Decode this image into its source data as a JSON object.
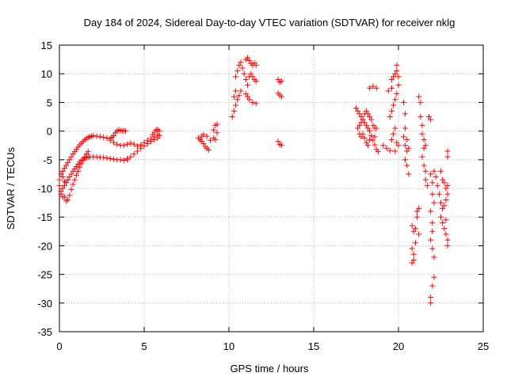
{
  "chart_data": {
    "type": "scatter",
    "title": "Day 184 of 2024, Sidereal Day-to-day VTEC variation (SDTVAR) for receiver nklg",
    "xlabel": "GPS time / hours",
    "ylabel": "SDTVAR / TECUs",
    "xlim": [
      0,
      25
    ],
    "ylim": [
      -35,
      15
    ],
    "xticks": [
      0,
      5,
      10,
      15,
      20,
      25
    ],
    "yticks": [
      -35,
      -30,
      -25,
      -20,
      -15,
      -10,
      -5,
      0,
      5,
      10,
      15
    ],
    "xtick_labels": [
      "0",
      "5",
      "10",
      "15",
      "20",
      "25"
    ],
    "ytick_labels": [
      "-35",
      "-30",
      "-25",
      "-20",
      "-15",
      "-10",
      "-5",
      "0",
      "5",
      "10",
      "15"
    ],
    "grid": true,
    "marker": "+",
    "color": "#ff0000",
    "series": [
      {
        "name": "SDTVAR",
        "points": [
          [
            0.1,
            -7.5
          ],
          [
            0.2,
            -7.0
          ],
          [
            0.3,
            -6.5
          ],
          [
            0.4,
            -6.0
          ],
          [
            0.5,
            -5.5
          ],
          [
            0.6,
            -5.0
          ],
          [
            0.7,
            -4.5
          ],
          [
            0.8,
            -4.0
          ],
          [
            0.9,
            -3.6
          ],
          [
            1.0,
            -3.2
          ],
          [
            1.1,
            -2.8
          ],
          [
            1.2,
            -2.4
          ],
          [
            1.3,
            -2.1
          ],
          [
            1.4,
            -1.8
          ],
          [
            1.5,
            -1.5
          ],
          [
            1.6,
            -1.3
          ],
          [
            1.7,
            -1.1
          ],
          [
            1.8,
            -1.0
          ],
          [
            1.9,
            -0.9
          ],
          [
            2.0,
            -0.8
          ],
          [
            2.2,
            -0.9
          ],
          [
            2.4,
            -1.0
          ],
          [
            2.6,
            -1.1
          ],
          [
            2.8,
            -1.2
          ],
          [
            3.0,
            -1.3
          ],
          [
            3.1,
            -1.1
          ],
          [
            3.2,
            -0.8
          ],
          [
            3.3,
            -0.3
          ],
          [
            3.4,
            0.0
          ],
          [
            3.5,
            0.2
          ],
          [
            3.6,
            0.1
          ],
          [
            3.7,
            0.0
          ],
          [
            3.8,
            0.1
          ],
          [
            3.9,
            0.0
          ],
          [
            0.1,
            -10.5
          ],
          [
            0.2,
            -10.0
          ],
          [
            0.3,
            -9.5
          ],
          [
            0.4,
            -9.0
          ],
          [
            0.5,
            -8.5
          ],
          [
            0.6,
            -8.0
          ],
          [
            0.7,
            -7.5
          ],
          [
            0.8,
            -7.0
          ],
          [
            0.9,
            -6.6
          ],
          [
            1.0,
            -6.2
          ],
          [
            1.1,
            -5.8
          ],
          [
            1.2,
            -5.4
          ],
          [
            1.3,
            -5.1
          ],
          [
            1.4,
            -4.9
          ],
          [
            1.5,
            -4.7
          ],
          [
            1.6,
            -4.6
          ],
          [
            1.7,
            -4.5
          ],
          [
            1.8,
            -4.5
          ],
          [
            2.0,
            -4.5
          ],
          [
            2.2,
            -4.5
          ],
          [
            2.4,
            -4.6
          ],
          [
            2.6,
            -4.6
          ],
          [
            2.8,
            -4.7
          ],
          [
            3.0,
            -4.8
          ],
          [
            3.2,
            -4.9
          ],
          [
            3.4,
            -5.0
          ],
          [
            3.6,
            -5.0
          ],
          [
            3.8,
            -5.1
          ],
          [
            4.0,
            -5.0
          ],
          [
            0.3,
            -11.5
          ],
          [
            0.4,
            -12.2
          ],
          [
            0.5,
            -12.0
          ],
          [
            0.6,
            -11.2
          ],
          [
            0.7,
            -10.2
          ],
          [
            0.8,
            -9.3
          ],
          [
            0.9,
            -8.5
          ],
          [
            1.0,
            -7.7
          ],
          [
            1.1,
            -7.0
          ],
          [
            1.2,
            -6.3
          ],
          [
            1.3,
            -5.7
          ],
          [
            1.4,
            -5.1
          ],
          [
            1.5,
            -4.5
          ],
          [
            1.6,
            -4.0
          ],
          [
            1.7,
            -3.6
          ],
          [
            0.0,
            -8.5
          ],
          [
            0.0,
            -9.5
          ],
          [
            0.1,
            -11.0
          ],
          [
            0.2,
            -11.5
          ],
          [
            0.2,
            -8.0
          ],
          [
            0.3,
            -8.8
          ],
          [
            3.0,
            -1.6
          ],
          [
            3.2,
            -2.0
          ],
          [
            3.4,
            -2.3
          ],
          [
            3.6,
            -2.5
          ],
          [
            3.8,
            -2.5
          ],
          [
            4.0,
            -2.3
          ],
          [
            4.2,
            -2.1
          ],
          [
            4.4,
            -2.3
          ],
          [
            4.6,
            -2.6
          ],
          [
            4.8,
            -2.4
          ],
          [
            5.0,
            -2.0
          ],
          [
            5.2,
            -1.6
          ],
          [
            5.4,
            -1.3
          ],
          [
            5.6,
            -1.0
          ],
          [
            5.8,
            -0.6
          ],
          [
            4.0,
            -4.8
          ],
          [
            4.2,
            -4.5
          ],
          [
            4.4,
            -4.0
          ],
          [
            4.6,
            -3.5
          ],
          [
            4.8,
            -3.0
          ],
          [
            5.0,
            -2.6
          ],
          [
            5.2,
            -2.2
          ],
          [
            5.4,
            -1.8
          ],
          [
            5.6,
            -1.5
          ],
          [
            5.8,
            -1.2
          ],
          [
            5.9,
            -0.8
          ],
          [
            5.9,
            0.0
          ],
          [
            5.8,
            0.3
          ],
          [
            5.7,
            0.2
          ],
          [
            5.6,
            -0.2
          ],
          [
            5.5,
            -0.6
          ],
          [
            8.2,
            -1.2
          ],
          [
            8.3,
            -1.5
          ],
          [
            8.4,
            -1.8
          ],
          [
            8.5,
            -2.2
          ],
          [
            8.6,
            -2.7
          ],
          [
            8.7,
            -3.0
          ],
          [
            8.8,
            -3.3
          ],
          [
            8.4,
            -0.9
          ],
          [
            8.5,
            -0.6
          ],
          [
            8.7,
            -0.9
          ],
          [
            8.9,
            -1.6
          ],
          [
            9.1,
            -1.2
          ],
          [
            9.1,
            0.2
          ],
          [
            9.2,
            1.0
          ],
          [
            9.3,
            1.2
          ],
          [
            9.3,
            -0.3
          ],
          [
            9.2,
            -1.5
          ],
          [
            10.2,
            2.5
          ],
          [
            10.3,
            3.5
          ],
          [
            10.4,
            4.5
          ],
          [
            10.5,
            5.5
          ],
          [
            10.6,
            6.2
          ],
          [
            10.7,
            7.0
          ],
          [
            10.3,
            6.0
          ],
          [
            10.4,
            7.0
          ],
          [
            10.4,
            9.5
          ],
          [
            10.5,
            10.5
          ],
          [
            10.6,
            11.5
          ],
          [
            10.7,
            12.0
          ],
          [
            10.8,
            11.0
          ],
          [
            10.9,
            10.0
          ],
          [
            11.0,
            9.0
          ],
          [
            11.1,
            8.0
          ],
          [
            11.2,
            9.5
          ],
          [
            11.3,
            10.0
          ],
          [
            11.4,
            9.5
          ],
          [
            11.5,
            9.0
          ],
          [
            11.6,
            8.7
          ],
          [
            11.0,
            12.5
          ],
          [
            11.1,
            12.8
          ],
          [
            11.2,
            12.3
          ],
          [
            11.3,
            11.8
          ],
          [
            11.4,
            11.5
          ],
          [
            11.5,
            11.9
          ],
          [
            11.6,
            11.5
          ],
          [
            11.0,
            6.5
          ],
          [
            11.1,
            6.0
          ],
          [
            11.2,
            5.5
          ],
          [
            11.4,
            5.0
          ],
          [
            11.6,
            4.8
          ],
          [
            12.9,
            9.0
          ],
          [
            13.0,
            8.5
          ],
          [
            13.1,
            8.7
          ],
          [
            12.9,
            6.6
          ],
          [
            13.0,
            6.3
          ],
          [
            13.1,
            6.0
          ],
          [
            12.9,
            -1.8
          ],
          [
            13.0,
            -2.3
          ],
          [
            13.1,
            -2.5
          ],
          [
            17.5,
            4.0
          ],
          [
            17.6,
            3.5
          ],
          [
            17.7,
            3.0
          ],
          [
            17.8,
            2.5
          ],
          [
            17.9,
            2.0
          ],
          [
            18.0,
            1.5
          ],
          [
            18.1,
            1.0
          ],
          [
            18.2,
            0.5
          ],
          [
            18.3,
            0.0
          ],
          [
            18.4,
            -0.8
          ],
          [
            18.5,
            -1.6
          ],
          [
            18.6,
            -2.4
          ],
          [
            18.7,
            -3.2
          ],
          [
            18.8,
            -3.6
          ],
          [
            17.6,
            0.5
          ],
          [
            17.7,
            1.0
          ],
          [
            17.8,
            1.5
          ],
          [
            17.9,
            2.0
          ],
          [
            18.0,
            3.0
          ],
          [
            18.1,
            3.5
          ],
          [
            18.2,
            3.0
          ],
          [
            18.3,
            2.5
          ],
          [
            18.4,
            2.0
          ],
          [
            18.5,
            1.0
          ],
          [
            18.6,
            0.5
          ],
          [
            17.7,
            -0.5
          ],
          [
            17.8,
            -1.0
          ],
          [
            17.9,
            -0.5
          ],
          [
            18.0,
            -1.2
          ],
          [
            18.1,
            -2.0
          ],
          [
            18.2,
            -2.5
          ],
          [
            18.3,
            -1.5
          ],
          [
            18.6,
            -1.0
          ],
          [
            18.7,
            0.5
          ],
          [
            18.3,
            7.5
          ],
          [
            18.5,
            7.8
          ],
          [
            18.7,
            7.5
          ],
          [
            19.1,
            -2.5
          ],
          [
            19.3,
            -3.0
          ],
          [
            19.5,
            -3.4
          ],
          [
            19.6,
            -1.5
          ],
          [
            19.7,
            -0.5
          ],
          [
            19.8,
            0.5
          ],
          [
            19.5,
            2.5
          ],
          [
            19.6,
            3.5
          ],
          [
            19.7,
            4.5
          ],
          [
            19.8,
            5.5
          ],
          [
            19.9,
            6.5
          ],
          [
            19.4,
            7.0
          ],
          [
            19.6,
            7.5
          ],
          [
            19.6,
            9.0
          ],
          [
            19.7,
            9.5
          ],
          [
            19.8,
            10.0
          ],
          [
            19.9,
            10.5
          ],
          [
            19.9,
            11.5
          ],
          [
            20.0,
            9.5
          ],
          [
            20.0,
            8.0
          ],
          [
            19.9,
            -2.0
          ],
          [
            20.0,
            -2.5
          ],
          [
            19.8,
            -3.5
          ],
          [
            20.3,
            5.0
          ],
          [
            20.4,
            3.0
          ],
          [
            20.4,
            0.5
          ],
          [
            20.3,
            -1.0
          ],
          [
            20.4,
            -2.5
          ],
          [
            20.5,
            -3.5
          ],
          [
            20.4,
            -5.0
          ],
          [
            20.5,
            -6.0
          ],
          [
            20.6,
            -7.5
          ],
          [
            20.5,
            -1.5
          ],
          [
            20.6,
            -3.0
          ],
          [
            20.8,
            -16.5
          ],
          [
            20.9,
            -17.5
          ],
          [
            21.0,
            -19.5
          ],
          [
            20.8,
            -20.5
          ],
          [
            20.9,
            -21.5
          ],
          [
            20.9,
            -22.5
          ],
          [
            20.8,
            -23.0
          ],
          [
            21.0,
            -17.0
          ],
          [
            21.1,
            -15.0
          ],
          [
            21.1,
            -14.0
          ],
          [
            21.2,
            -13.5
          ],
          [
            21.2,
            -18.0
          ],
          [
            21.2,
            6.0
          ],
          [
            21.3,
            5.0
          ],
          [
            21.3,
            2.5
          ],
          [
            21.4,
            1.0
          ],
          [
            21.4,
            -0.5
          ],
          [
            21.5,
            -1.5
          ],
          [
            21.6,
            -2.5
          ],
          [
            21.5,
            -3.0
          ],
          [
            21.4,
            -4.5
          ],
          [
            21.5,
            -6.0
          ],
          [
            21.6,
            -7.0
          ],
          [
            21.6,
            -8.5
          ],
          [
            21.7,
            -9.5
          ],
          [
            21.8,
            2.5
          ],
          [
            21.9,
            2.0
          ],
          [
            21.9,
            -7.5
          ],
          [
            22.0,
            -9.0
          ],
          [
            22.0,
            -11.0
          ],
          [
            22.1,
            -12.5
          ],
          [
            21.9,
            -14.0
          ],
          [
            22.0,
            -16.0
          ],
          [
            22.0,
            -17.5
          ],
          [
            21.9,
            -19.0
          ],
          [
            22.0,
            -20.5
          ],
          [
            22.1,
            -22.0
          ],
          [
            22.1,
            -25.5
          ],
          [
            22.0,
            -27.0
          ],
          [
            21.9,
            -29.0
          ],
          [
            21.9,
            -30.0
          ],
          [
            22.1,
            -7.0
          ],
          [
            22.2,
            -8.0
          ],
          [
            22.3,
            -9.5
          ],
          [
            22.4,
            -11.0
          ],
          [
            22.5,
            -12.5
          ],
          [
            22.6,
            -13.5
          ],
          [
            22.7,
            -13.0
          ],
          [
            22.8,
            -12.0
          ],
          [
            22.9,
            -11.0
          ],
          [
            22.6,
            -8.5
          ],
          [
            22.5,
            -7.0
          ],
          [
            22.7,
            -9.0
          ],
          [
            22.8,
            -10.0
          ],
          [
            22.9,
            -9.5
          ],
          [
            22.5,
            -15.0
          ],
          [
            22.6,
            -16.0
          ],
          [
            22.7,
            -17.0
          ],
          [
            22.8,
            -18.0
          ],
          [
            22.9,
            -19.0
          ],
          [
            22.9,
            -20.0
          ],
          [
            22.8,
            -15.5
          ],
          [
            22.9,
            -3.5
          ],
          [
            22.9,
            -4.5
          ]
        ]
      }
    ]
  }
}
